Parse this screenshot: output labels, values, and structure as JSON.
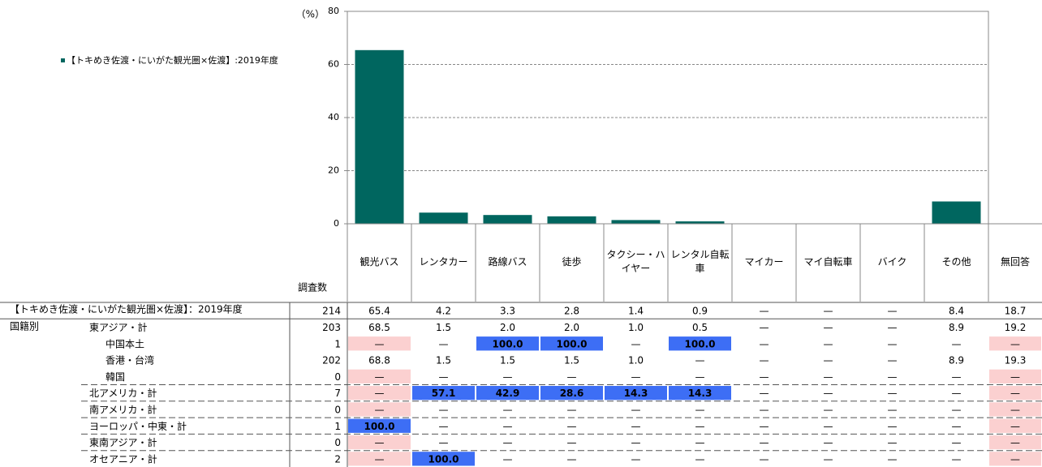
{
  "chart_data": {
    "type": "bar",
    "y_unit": "（%）",
    "categories": [
      "観光バス",
      "レンタカー",
      "路線バス",
      "徒歩",
      "タクシー・ハイヤー",
      "レンタル自転車",
      "マイカー",
      "マイ自転車",
      "バイク",
      "その他"
    ],
    "series": [
      {
        "name": "【トキめき佐渡・にいがた観光圏×佐渡】:2019年度",
        "color": "#00665f",
        "values": [
          65.4,
          4.2,
          3.3,
          2.8,
          1.4,
          0.9,
          null,
          null,
          null,
          8.4
        ]
      }
    ],
    "ylim": [
      0,
      80
    ],
    "yticks": [
      0,
      20,
      40,
      60,
      80
    ],
    "grid": true,
    "legend": "top-left"
  },
  "table": {
    "n_header": "調査数",
    "last_header": "無回答",
    "rows": [
      {
        "group": "【トキめき佐渡・にいがた観光圏×佐渡】：2019年度",
        "n": "214",
        "cells": [
          "65.4",
          "4.2",
          "3.3",
          "2.8",
          "1.4",
          "0.9",
          "—",
          "—",
          "—",
          "8.4",
          "18.7"
        ]
      },
      {
        "group": "国籍別",
        "label": "東アジア・計",
        "n": "203",
        "cells": [
          "68.5",
          "1.5",
          "2.0",
          "2.0",
          "1.0",
          "0.5",
          "—",
          "—",
          "—",
          "8.9",
          "19.2"
        ]
      },
      {
        "sublabel": "中国本土",
        "n": "1",
        "cells": [
          "—",
          "—",
          "100.0",
          "100.0",
          "—",
          "100.0",
          "—",
          "—",
          "—",
          "—",
          "—"
        ],
        "bg": [
          "#fbd0d0",
          null,
          "#3d6ef5",
          "#3d6ef5",
          null,
          "#3d6ef5",
          null,
          null,
          null,
          null,
          "#fbd0d0"
        ],
        "fg": [
          "#e8322c",
          null,
          "#ffffff",
          "#ffffff",
          null,
          "#ffffff",
          null,
          null,
          null,
          "#e8322c",
          "#e8322c"
        ]
      },
      {
        "sublabel": "香港・台湾",
        "n": "202",
        "cells": [
          "68.8",
          "1.5",
          "1.5",
          "1.5",
          "1.0",
          "—",
          "—",
          "—",
          "—",
          "8.9",
          "19.3"
        ]
      },
      {
        "sublabel": "韓国",
        "n": "0",
        "cells": [
          "—",
          "—",
          "—",
          "—",
          "—",
          "—",
          "—",
          "—",
          "—",
          "—",
          "—"
        ],
        "bg": [
          "#fbd0d0",
          null,
          null,
          null,
          null,
          null,
          null,
          null,
          null,
          null,
          "#fbd0d0"
        ],
        "fg": [
          "#e8322c",
          null,
          null,
          null,
          null,
          null,
          null,
          null,
          null,
          "#e8322c",
          "#e8322c"
        ]
      },
      {
        "label": "北アメリカ・計",
        "n": "7",
        "cells": [
          "—",
          "57.1",
          "42.9",
          "28.6",
          "14.3",
          "14.3",
          "—",
          "—",
          "—",
          "—",
          "—"
        ],
        "bg": [
          "#fbd0d0",
          "#3d6ef5",
          "#3d6ef5",
          "#3d6ef5",
          "#3d6ef5",
          "#3d6ef5",
          null,
          null,
          null,
          null,
          "#fbd0d0"
        ],
        "fg": [
          "#e8322c",
          "#ffffff",
          "#ffffff",
          "#ffffff",
          "#ffffff",
          "#ffffff",
          null,
          null,
          null,
          "#e8322c",
          "#e8322c"
        ]
      },
      {
        "label": "南アメリカ・計",
        "n": "0",
        "cells": [
          "—",
          "—",
          "—",
          "—",
          "—",
          "—",
          "—",
          "—",
          "—",
          "—",
          "—"
        ],
        "bg": [
          "#fbd0d0",
          null,
          null,
          null,
          null,
          null,
          null,
          null,
          null,
          null,
          "#fbd0d0"
        ],
        "fg": [
          "#e8322c",
          null,
          null,
          null,
          null,
          null,
          null,
          null,
          null,
          "#e8322c",
          "#e8322c"
        ]
      },
      {
        "label": "ヨーロッパ・中東・計",
        "n": "1",
        "cells": [
          "100.0",
          "—",
          "—",
          "—",
          "—",
          "—",
          "—",
          "—",
          "—",
          "—",
          "—"
        ],
        "bg": [
          "#3d6ef5",
          null,
          null,
          null,
          null,
          null,
          null,
          null,
          null,
          null,
          "#fbd0d0"
        ],
        "fg": [
          "#ffffff",
          null,
          null,
          null,
          null,
          null,
          null,
          null,
          null,
          "#e8322c",
          "#e8322c"
        ]
      },
      {
        "label": "東南アジア・計",
        "n": "0",
        "cells": [
          "—",
          "—",
          "—",
          "—",
          "—",
          "—",
          "—",
          "—",
          "—",
          "—",
          "—"
        ],
        "bg": [
          "#fbd0d0",
          null,
          null,
          null,
          null,
          null,
          null,
          null,
          null,
          null,
          "#fbd0d0"
        ],
        "fg": [
          "#e8322c",
          null,
          null,
          null,
          null,
          null,
          null,
          null,
          null,
          "#e8322c",
          "#e8322c"
        ]
      },
      {
        "label": "オセアニア・計",
        "n": "2",
        "cells": [
          "—",
          "100.0",
          "—",
          "—",
          "—",
          "—",
          "—",
          "—",
          "—",
          "—",
          "—"
        ],
        "bg": [
          "#fbd0d0",
          "#3d6ef5",
          null,
          null,
          null,
          null,
          null,
          null,
          null,
          null,
          "#fbd0d0"
        ],
        "fg": [
          "#e8322c",
          "#ffffff",
          null,
          null,
          null,
          null,
          null,
          null,
          null,
          "#e8322c",
          "#e8322c"
        ]
      }
    ]
  }
}
